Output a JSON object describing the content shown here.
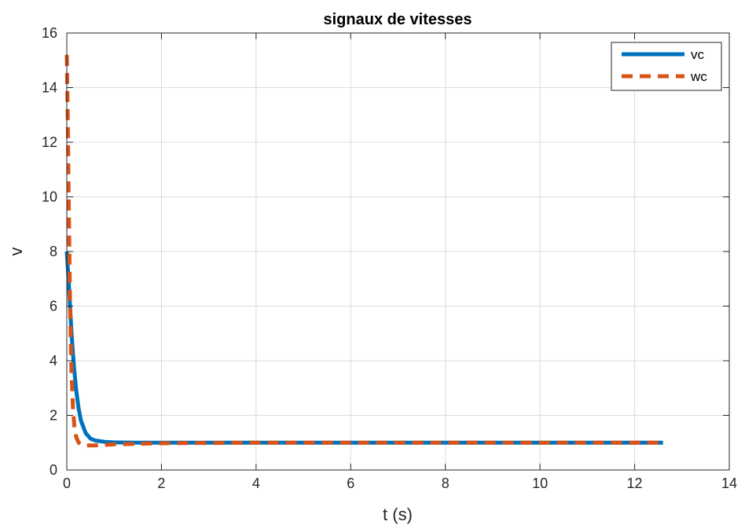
{
  "chart_data": {
    "type": "line",
    "title": "signaux de vitesses",
    "xlabel": "t (s)",
    "ylabel": "v",
    "xlim": [
      0,
      14
    ],
    "ylim": [
      0,
      16
    ],
    "xticks": [
      "0",
      "2",
      "4",
      "6",
      "8",
      "10",
      "12",
      "14"
    ],
    "yticks": [
      "0",
      "2",
      "4",
      "6",
      "8",
      "10",
      "12",
      "14",
      "16"
    ],
    "grid": true,
    "legend_position": "top-right",
    "series": [
      {
        "name": "vc",
        "color": "#0072BD",
        "style": "solid",
        "x": [
          0,
          0.05,
          0.1,
          0.15,
          0.2,
          0.25,
          0.3,
          0.4,
          0.5,
          0.6,
          0.8,
          1.0,
          1.5,
          2,
          3,
          4,
          6,
          8,
          10,
          12,
          12.6
        ],
        "y": [
          8.0,
          6.6,
          5.0,
          3.8,
          2.9,
          2.25,
          1.8,
          1.35,
          1.15,
          1.08,
          1.03,
          1.01,
          1.0,
          1.0,
          1.0,
          1.0,
          1.0,
          1.0,
          1.0,
          1.0,
          1.0
        ]
      },
      {
        "name": "wc",
        "color": "#D95319",
        "style": "dashed",
        "x": [
          0,
          0.02,
          0.04,
          0.06,
          0.08,
          0.1,
          0.13,
          0.16,
          0.2,
          0.25,
          0.3,
          0.4,
          0.6,
          0.8,
          1.0,
          1.5,
          2,
          3,
          4,
          6,
          8,
          10,
          12,
          12.6
        ],
        "y": [
          15.2,
          13.0,
          10.0,
          7.2,
          5.0,
          3.5,
          2.3,
          1.6,
          1.2,
          1.0,
          0.93,
          0.9,
          0.9,
          0.92,
          0.94,
          0.96,
          0.98,
          0.99,
          1.0,
          1.0,
          1.0,
          1.0,
          1.0,
          1.0
        ]
      }
    ]
  }
}
